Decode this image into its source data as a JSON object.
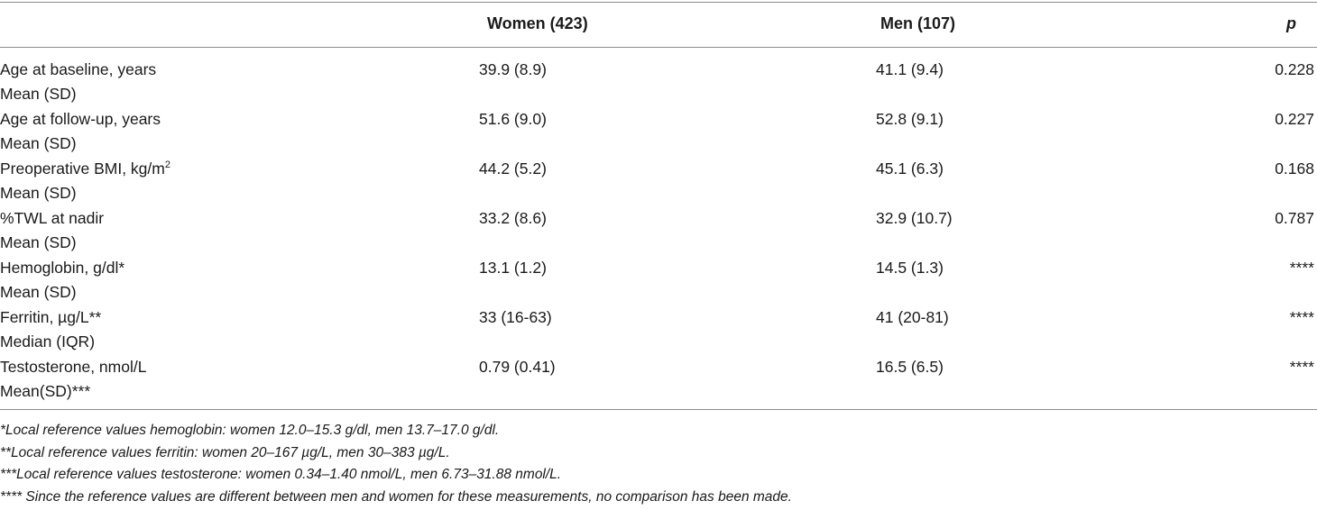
{
  "header": {
    "women": "Women (423)",
    "men": "Men (107)",
    "p": "p"
  },
  "rows": [
    {
      "label": "Age at baseline, years",
      "stat": "Mean (SD)",
      "women": "39.9 (8.9)",
      "men": "41.1 (9.4)",
      "p": "0.228"
    },
    {
      "label": "Age at follow-up, years",
      "stat": "Mean (SD)",
      "women": "51.6 (9.0)",
      "men": "52.8 (9.1)",
      "p": "0.227"
    },
    {
      "label": "Preoperative BMI, kg/m",
      "label_sup": "2",
      "stat": "Mean (SD)",
      "women": "44.2 (5.2)",
      "men": "45.1 (6.3)",
      "p": "0.168"
    },
    {
      "label": "%TWL at nadir",
      "stat": "Mean (SD)",
      "women": "33.2 (8.6)",
      "men": "32.9 (10.7)",
      "p": "0.787"
    },
    {
      "label": "Hemoglobin, g/dl*",
      "stat": "Mean (SD)",
      "women": "13.1 (1.2)",
      "men": "14.5 (1.3)",
      "p": "****"
    },
    {
      "label": "Ferritin, µg/L**",
      "stat": "Median (IQR)",
      "women": "33 (16-63)",
      "men": "41 (20-81)",
      "p": "****"
    },
    {
      "label": "Testosterone, nmol/L",
      "stat": "Mean(SD)***",
      "women": "0.79 (0.41)",
      "men": "16.5 (6.5)",
      "p": "****"
    }
  ],
  "notes": [
    "*Local reference values hemoglobin: women 12.0–15.3 g/dl, men 13.7–17.0 g/dl.",
    "**Local reference values ferritin: women 20–167 µg/L, men 30–383 µg/L.",
    "***Local reference values testosterone: women 0.34–1.40 nmol/L, men 6.73–31.88 nmol/L.",
    "**** Since the reference values are different between men and women for these measurements, no comparison has been made."
  ]
}
